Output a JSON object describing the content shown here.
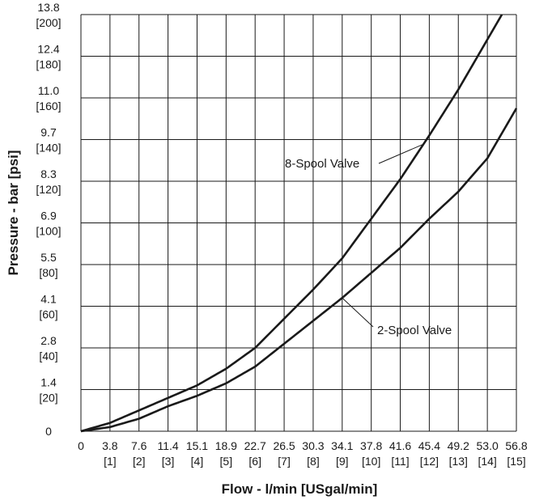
{
  "chart_data": {
    "type": "line",
    "title": "",
    "xlabel": "Flow - l/min [USgal/min]",
    "ylabel": "Pressure - bar [psi]",
    "xlim": [
      0,
      15
    ],
    "ylim": [
      0,
      200
    ],
    "grid": true,
    "x_ticks": [
      {
        "value": 0,
        "label": "0",
        "sub": ""
      },
      {
        "value": 1,
        "label": "3.8",
        "sub": "[1]"
      },
      {
        "value": 2,
        "label": "7.6",
        "sub": "[2]"
      },
      {
        "value": 3,
        "label": "11.4",
        "sub": "[3]"
      },
      {
        "value": 4,
        "label": "15.1",
        "sub": "[4]"
      },
      {
        "value": 5,
        "label": "18.9",
        "sub": "[5]"
      },
      {
        "value": 6,
        "label": "22.7",
        "sub": "[6]"
      },
      {
        "value": 7,
        "label": "26.5",
        "sub": "[7]"
      },
      {
        "value": 8,
        "label": "30.3",
        "sub": "[8]"
      },
      {
        "value": 9,
        "label": "34.1",
        "sub": "[9]"
      },
      {
        "value": 10,
        "label": "37.8",
        "sub": "[10]"
      },
      {
        "value": 11,
        "label": "41.6",
        "sub": "[11]"
      },
      {
        "value": 12,
        "label": "45.4",
        "sub": "[12]"
      },
      {
        "value": 13,
        "label": "49.2",
        "sub": "[13]"
      },
      {
        "value": 14,
        "label": "53.0",
        "sub": "[14]"
      },
      {
        "value": 15,
        "label": "56.8",
        "sub": "[15]"
      }
    ],
    "y_ticks": [
      {
        "value": 0,
        "label": "0",
        "sub": ""
      },
      {
        "value": 20,
        "label": "1.4",
        "sub": "[20]"
      },
      {
        "value": 40,
        "label": "2.8",
        "sub": "[40]"
      },
      {
        "value": 60,
        "label": "4.1",
        "sub": "[60]"
      },
      {
        "value": 80,
        "label": "5.5",
        "sub": "[80]"
      },
      {
        "value": 100,
        "label": "6.9",
        "sub": "[100]"
      },
      {
        "value": 120,
        "label": "8.3",
        "sub": "[120]"
      },
      {
        "value": 140,
        "label": "9.7",
        "sub": "[140]"
      },
      {
        "value": 160,
        "label": "11.0",
        "sub": "[160]"
      },
      {
        "value": 180,
        "label": "12.4",
        "sub": "[180]"
      },
      {
        "value": 200,
        "label": "13.8",
        "sub": "[200]"
      }
    ],
    "series": [
      {
        "name": "8-Spool Valve",
        "x": [
          0,
          1,
          2,
          3,
          4,
          5,
          6,
          7,
          8,
          9,
          10,
          11,
          12,
          13,
          14,
          15
        ],
        "y": [
          0,
          4,
          10,
          16,
          22,
          30,
          40,
          54,
          68,
          83,
          102,
          121,
          142,
          164,
          188,
          212
        ]
      },
      {
        "name": "2-Spool Valve",
        "x": [
          0,
          1,
          2,
          3,
          4,
          5,
          6,
          7,
          8,
          9,
          10,
          11,
          12,
          13,
          14,
          15
        ],
        "y": [
          0,
          2,
          6,
          12,
          17,
          23,
          31,
          42,
          53,
          64,
          76,
          88,
          102,
          115,
          131,
          155
        ]
      }
    ],
    "annotations": [
      {
        "text": "8-Spool Valve",
        "series": "8-Spool Valve",
        "at_x": 11.8
      },
      {
        "text": "2-Spool Valve",
        "series": "2-Spool Valve",
        "at_x": 9.0
      }
    ]
  }
}
